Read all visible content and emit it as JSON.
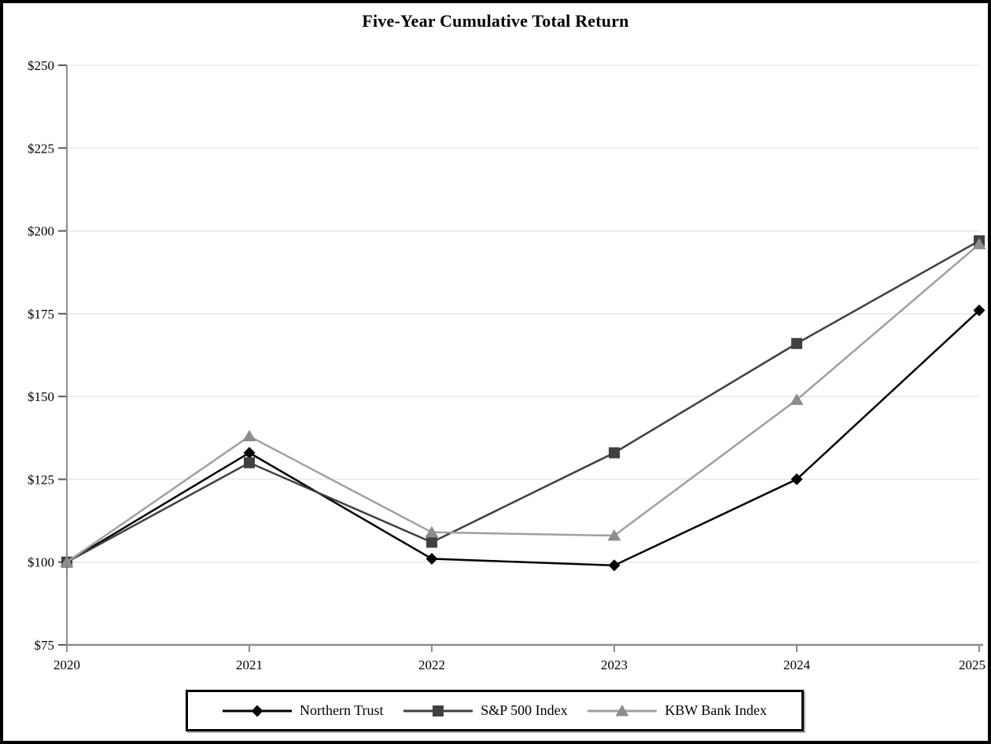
{
  "title": "Five-Year Cumulative Total Return",
  "chart_data": {
    "type": "line",
    "x": [
      "2020",
      "2021",
      "2022",
      "2023",
      "2024",
      "2025"
    ],
    "series": [
      {
        "name": "Northern Trust",
        "marker": "diamond",
        "line_color": "#000000",
        "marker_color": "#000000",
        "values": [
          100,
          133,
          101,
          99,
          125,
          176
        ]
      },
      {
        "name": "S&P 500 Index",
        "marker": "square",
        "line_color": "#404040",
        "marker_color": "#404040",
        "values": [
          100,
          130,
          106,
          133,
          166,
          197
        ]
      },
      {
        "name": "KBW Bank Index",
        "marker": "triangle",
        "line_color": "#a0a0a0",
        "marker_color": "#8c8c8c",
        "values": [
          100,
          138,
          109,
          108,
          149,
          196
        ]
      }
    ],
    "ylim": [
      75,
      250
    ],
    "y_ticks": [
      75,
      100,
      125,
      150,
      175,
      200,
      225,
      250
    ],
    "y_tick_prefix": "$",
    "grid": true,
    "legend_position": "bottom",
    "axis_color": "#8c8c8c",
    "grid_color": "#e8e8e8",
    "tick_color": "#595959",
    "label_color": "#000000"
  }
}
